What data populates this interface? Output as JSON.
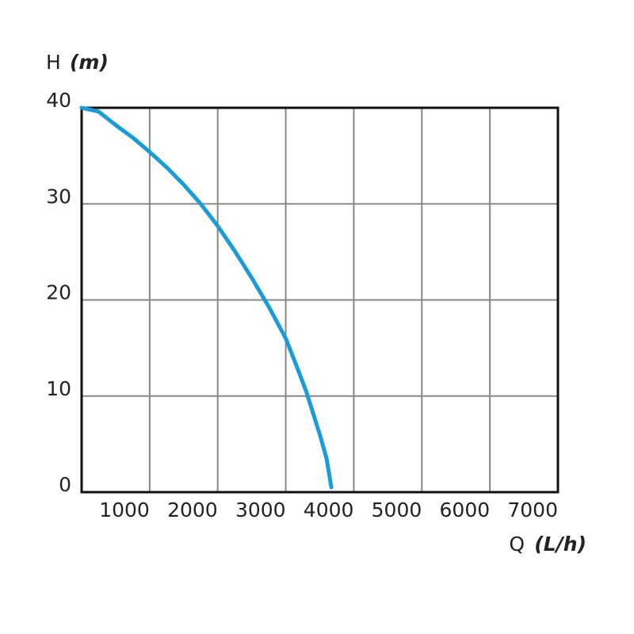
{
  "chart_data": {
    "type": "line",
    "y_label": "H",
    "y_unit": "(m)",
    "x_label": "Q",
    "x_unit": "(L/h)",
    "x": [
      0,
      250,
      500,
      750,
      1000,
      1250,
      1500,
      1750,
      2000,
      2250,
      2500,
      2750,
      3000,
      3150,
      3300,
      3500,
      3600,
      3670
    ],
    "series": [
      {
        "name": "H",
        "color": "#1a9cd8",
        "values": [
          40,
          39.6,
          38.2,
          36.9,
          35.4,
          33.8,
          32,
          30,
          27.7,
          25.1,
          22.3,
          19.3,
          16,
          13.3,
          10.5,
          6,
          3.5,
          0.5
        ]
      }
    ],
    "xlim": [
      0,
      7000
    ],
    "xticks": [
      1000,
      2000,
      3000,
      4000,
      5000,
      6000,
      7000
    ],
    "ylim": [
      0,
      40
    ],
    "yticks": [
      0,
      10,
      20,
      30,
      40
    ],
    "grid": true
  }
}
